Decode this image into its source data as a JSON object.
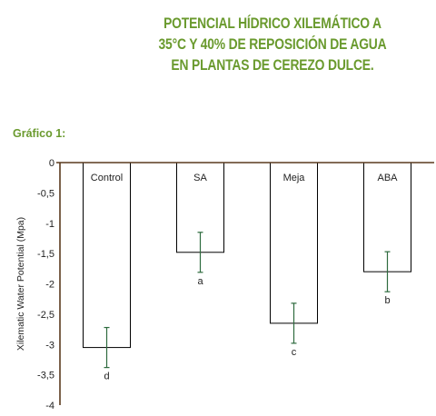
{
  "heading": {
    "lines": [
      "POTENCIAL HÍDRICO XILEMÁTICO A",
      "35°C Y 40% DE REPOSICIÓN DE AGUA",
      "EN PLANTAS DE CEREZO DULCE."
    ],
    "color": "#6a9a2e"
  },
  "chart_label": "Gráfico 1:",
  "colors": {
    "subtitle": "#6a9a2e",
    "axis": "#5a3a1e",
    "error_bar": "#2e6b3e",
    "bar_fill": "#ffffff",
    "bar_stroke": "#000000"
  },
  "chart_data": {
    "type": "bar",
    "title": "Gráfico 1:",
    "ylabel": "Xilematic Water Potential (Mpa)",
    "xlabel": "",
    "ylim": [
      -4,
      0
    ],
    "yticks": [
      "0",
      "-0,5",
      "-1",
      "-1,5",
      "-2",
      "-2,5",
      "-3",
      "-3,5",
      "-4"
    ],
    "categories": [
      "Control",
      "SA",
      "Meja",
      "ABA"
    ],
    "values": [
      -3.05,
      -1.48,
      -2.65,
      -1.8
    ],
    "errors": [
      0.33,
      0.33,
      0.33,
      0.33
    ],
    "significance": [
      "d",
      "a",
      "c",
      "b"
    ],
    "grid": false,
    "legend": "none",
    "category_labels_position": "inside-top"
  }
}
